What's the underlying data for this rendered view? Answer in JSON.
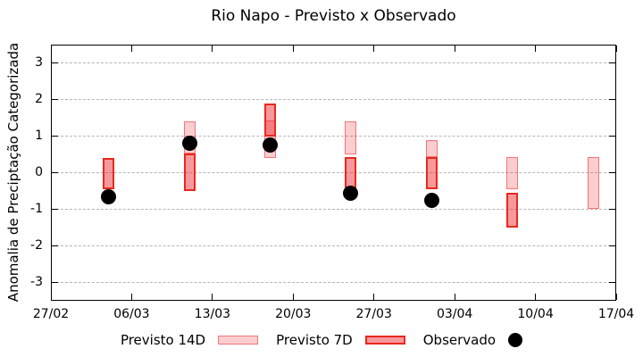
{
  "title": "Rio Napo - Previsto x Observado",
  "ylabel": "Anomalia de Preciptação Categorizada",
  "legend": {
    "previsto14_label": "Previsto 14D",
    "previsto7_label": "Previsto 7D",
    "observado_label": "Observado"
  },
  "chart_data": {
    "type": "bar",
    "subtype": "floating-range-bars-with-scatter-overlay",
    "title": "Rio Napo - Previsto x Observado",
    "xlabel": "",
    "ylabel": "Anomalia de Preciptação Categorizada",
    "ylim": [
      -3.5,
      3.5
    ],
    "xlim_days": [
      0,
      49
    ],
    "grid": true,
    "legend_position": "bottom",
    "x_tick_labels": [
      "27/02",
      "06/03",
      "13/03",
      "20/03",
      "27/03",
      "03/04",
      "10/04",
      "17/04"
    ],
    "x_tick_days": [
      0,
      7,
      14,
      21,
      28,
      35,
      42,
      49
    ],
    "y_ticks": [
      3,
      2,
      1,
      0,
      -1,
      -2,
      -3
    ],
    "series_names": [
      "Previsto 14D",
      "Previsto 7D",
      "Observado"
    ],
    "clusters": [
      {
        "date": "04/03",
        "day": 5,
        "previsto_14d": null,
        "previsto_7d": [
          -0.45,
          0.4
        ],
        "observado": -0.65
      },
      {
        "date": "11/03",
        "day": 12,
        "previsto_14d": [
          0.52,
          1.4
        ],
        "previsto_7d": [
          -0.5,
          0.52
        ],
        "observado": 0.8
      },
      {
        "date": "18/03",
        "day": 19,
        "previsto_14d": [
          0.4,
          1.43
        ],
        "previsto_7d": [
          0.98,
          1.9
        ],
        "observado": 0.75
      },
      {
        "date": "25/03",
        "day": 26,
        "previsto_14d": [
          0.5,
          1.4
        ],
        "previsto_7d": [
          -0.45,
          0.42
        ],
        "observado": -0.55
      },
      {
        "date": "01/04",
        "day": 33,
        "previsto_14d": [
          0.42,
          0.88
        ],
        "previsto_7d": [
          -0.45,
          0.42
        ],
        "observado": -0.75
      },
      {
        "date": "08/04",
        "day": 40,
        "previsto_14d": [
          -0.45,
          0.42
        ],
        "previsto_7d": [
          -1.5,
          -0.55
        ],
        "observado": null
      },
      {
        "date": "15/04",
        "day": 47,
        "previsto_14d": [
          -1.0,
          0.42
        ],
        "previsto_7d": null,
        "observado": null
      }
    ],
    "colors": {
      "previsto_14d_fill": "rgba(237,28,36,0.22)",
      "previsto_14d_border": "rgba(237,28,36,0.50)",
      "previsto_14d_fill_hex": "#fad3cd",
      "previsto_14d_border_hex": "#f08878",
      "previsto_7d_fill": "rgba(237,28,36,0.45)",
      "previsto_7d_border": "#e8281e",
      "previsto_7d_fill_hex": "#f9928e",
      "observado_color": "#000000",
      "grid_color": "#b5b5b5",
      "axis_color": "#000000",
      "background": "#ffffff"
    }
  }
}
